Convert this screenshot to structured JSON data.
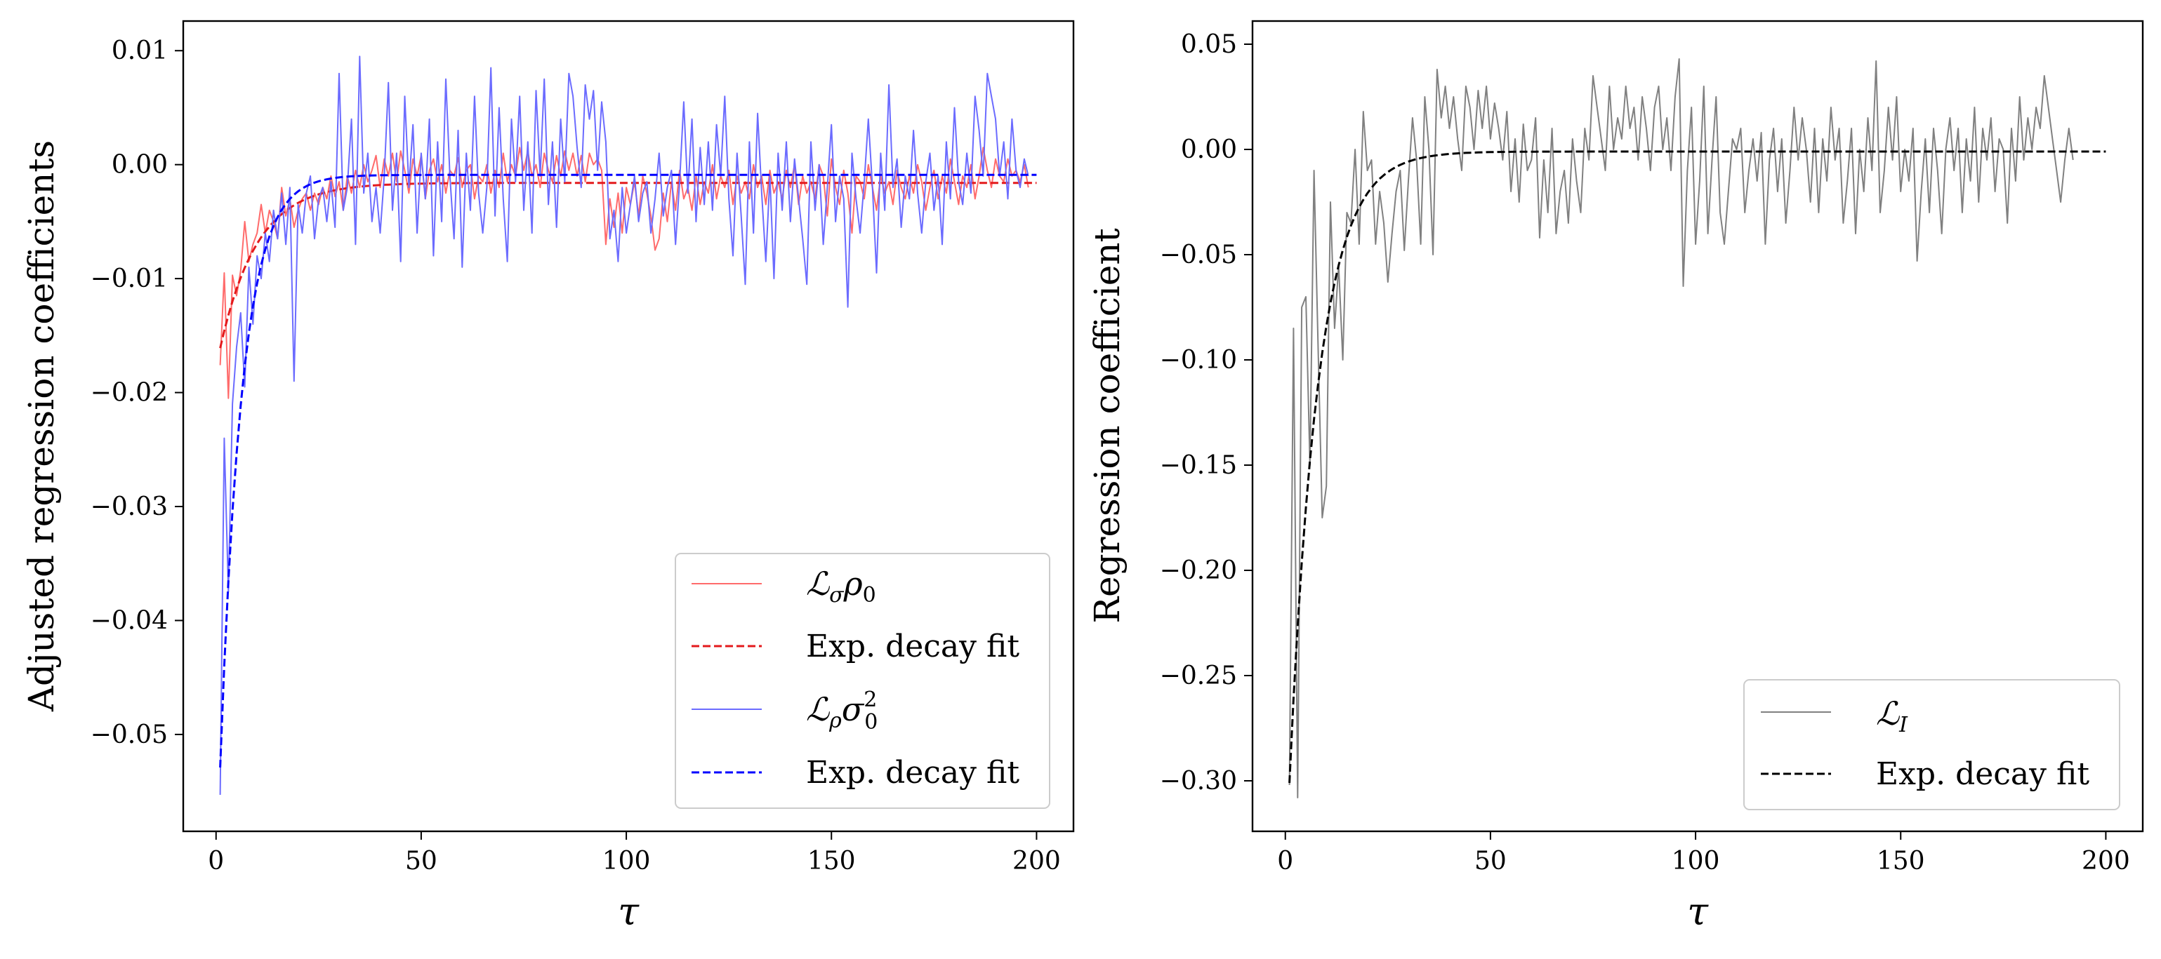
{
  "chart_data": [
    {
      "type": "line",
      "ylabel": "Adjusted regression coefficients",
      "xlabel": "τ",
      "xlim": [
        -8,
        209
      ],
      "ylim": [
        -0.0585,
        0.0126
      ],
      "xticks": [
        0,
        50,
        100,
        150,
        200
      ],
      "yticks": [
        0.01,
        0.0,
        -0.01,
        -0.02,
        -0.03,
        -0.04,
        -0.05
      ],
      "ytick_labels": [
        "0.01",
        "0.00",
        "−0.01",
        "−0.02",
        "−0.03",
        "−0.04",
        "−0.05"
      ],
      "grid": false,
      "legend_position": "lower-right",
      "series": [
        {
          "name": "ℒσρ0",
          "legend_main": "ℒ",
          "legend_sub": "σ",
          "legend_rest": "ρ",
          "legend_rest_sub": "0",
          "color": "#ff6b6b",
          "style": "solid",
          "values": [
            -0.0176,
            -0.0095,
            -0.0205,
            -0.0097,
            -0.0115,
            -0.0093,
            -0.005,
            -0.0085,
            -0.007,
            -0.006,
            -0.0035,
            -0.006,
            -0.004,
            -0.005,
            -0.0065,
            -0.002,
            -0.0045,
            -0.003,
            -0.0055,
            -0.004,
            -0.003,
            -0.0025,
            -0.004,
            -0.0025,
            -0.0035,
            -0.002,
            -0.003,
            -0.001,
            -0.0028,
            -0.0015,
            -0.004,
            -0.001,
            -0.0025,
            -0.0005,
            -0.002,
            0.0,
            -0.0015,
            -0.0005,
            0.0008,
            -0.002,
            0.0005,
            -0.001,
            0.001,
            -0.0015,
            0.0012,
            -0.0005,
            -0.0025,
            0.0005,
            -0.001,
            0.0008,
            -0.003,
            -0.0005,
            0.0005,
            -0.0015,
            0.0,
            -0.0025,
            -0.0005,
            -0.001,
            0.0006,
            -0.002,
            -0.0005,
            0.0,
            -0.003,
            -0.001,
            -0.0015,
            0.0,
            -0.0025,
            -0.0005,
            -0.002,
            0.001,
            -0.0015,
            0.0,
            -0.001,
            0.0015,
            -0.0005,
            0.0012,
            -0.001,
            0.0,
            -0.002,
            0.001,
            -0.0005,
            -0.0015,
            0.0008,
            -0.001,
            0.0012,
            -0.0005,
            0.001,
            -0.001,
            0.0008,
            -0.0015,
            0.001,
            0.0,
            0.0005,
            -0.0005,
            -0.007,
            -0.003,
            -0.0055,
            -0.0025,
            -0.006,
            -0.002,
            -0.0035,
            -0.0015,
            -0.0045,
            -0.001,
            -0.0025,
            -0.0045,
            -0.0075,
            -0.0065,
            -0.0025,
            -0.005,
            -0.0015,
            -0.004,
            -0.0005,
            -0.003,
            -0.002,
            -0.004,
            -0.001,
            -0.0035,
            -0.0015,
            -0.0025,
            0.0,
            -0.003,
            -0.001,
            -0.002,
            -0.0005,
            -0.0035,
            -0.001,
            -0.0025,
            -0.0015,
            -0.003,
            0.0,
            -0.002,
            -0.001,
            -0.0035,
            -0.0005,
            -0.0025,
            -0.0015,
            -0.003,
            -0.0005,
            -0.002,
            0.0,
            -0.0035,
            -0.001,
            -0.0025,
            -0.0015,
            -0.003,
            0.0,
            -0.001,
            -0.0045,
            0.0005,
            -0.002,
            -0.0035,
            -0.0005,
            -0.0025,
            -0.006,
            -0.001,
            -0.0015,
            -0.003,
            0.0,
            -0.002,
            -0.004,
            -0.001,
            -0.0025,
            -0.0015,
            -0.0035,
            -0.0005,
            -0.002,
            -0.003,
            -0.001,
            -0.0025,
            0.0,
            -0.0015,
            -0.004,
            -0.002,
            -0.0005,
            -0.003,
            -0.001,
            -0.0025,
            0.0005,
            -0.0015,
            -0.0035,
            -0.001,
            -0.002,
            0.0,
            -0.003,
            -0.001,
            0.0015,
            -0.0005,
            -0.002,
            0.0005,
            -0.001,
            -0.0015,
            0.0005,
            -0.001,
            -0.0005,
            -0.0015,
            0.0,
            -0.002
          ]
        },
        {
          "name": "Exp. decay fit",
          "color": "#e31a1c",
          "style": "dashed",
          "fit": {
            "a": -0.0145,
            "tau": 9.0,
            "c": -0.0016
          }
        },
        {
          "name": "ℒρσ0²",
          "legend_main": "ℒ",
          "legend_sub": "ρ",
          "legend_rest": "σ",
          "legend_rest_sub": "0",
          "legend_rest_sup": "2",
          "color": "#6b6bff",
          "style": "solid",
          "values": [
            -0.0553,
            -0.024,
            -0.0375,
            -0.021,
            -0.016,
            -0.013,
            -0.0195,
            -0.009,
            -0.014,
            -0.008,
            -0.01,
            -0.006,
            -0.0085,
            -0.004,
            -0.0065,
            -0.0025,
            -0.007,
            -0.002,
            -0.019,
            -0.0035,
            -0.006,
            -0.0025,
            -0.001,
            -0.0065,
            -0.003,
            -0.002,
            -0.005,
            -0.0015,
            -0.0055,
            0.008,
            -0.004,
            -0.002,
            0.004,
            -0.007,
            0.0095,
            -0.0025,
            0.001,
            -0.005,
            -0.002,
            -0.006,
            -0.001,
            0.0072,
            -0.004,
            0.001,
            -0.0085,
            0.006,
            -0.002,
            0.0035,
            -0.006,
            0.001,
            -0.003,
            0.004,
            -0.008,
            0.002,
            -0.005,
            0.0075,
            -0.001,
            -0.0065,
            0.003,
            -0.009,
            0.001,
            -0.004,
            0.006,
            -0.0025,
            -0.006,
            -0.002,
            0.0085,
            -0.0045,
            0.005,
            -0.003,
            -0.0085,
            0.004,
            -0.0015,
            0.006,
            -0.004,
            0.002,
            -0.006,
            0.0065,
            -0.001,
            0.0075,
            -0.0035,
            0.002,
            -0.0055,
            0.004,
            -0.0015,
            0.008,
            0.006,
            0.0015,
            -0.002,
            0.007,
            0.004,
            0.0065,
            -0.0005,
            0.0055,
            0.002,
            -0.0065,
            -0.004,
            -0.0085,
            -0.002,
            -0.006,
            -0.0035,
            -0.001,
            -0.005,
            -0.0025,
            -0.0015,
            -0.006,
            -0.003,
            0.001,
            -0.0045,
            -0.002,
            -0.0005,
            -0.007,
            -0.0015,
            0.0055,
            -0.0025,
            0.004,
            -0.005,
            0.0015,
            -0.0035,
            0.002,
            -0.004,
            0.0035,
            -0.001,
            0.006,
            -0.003,
            -0.008,
            0.001,
            -0.0045,
            -0.0105,
            0.002,
            -0.006,
            0.0045,
            -0.0025,
            -0.0085,
            -0.001,
            -0.01,
            0.001,
            -0.004,
            0.002,
            -0.005,
            0.0005,
            -0.003,
            -0.0065,
            -0.0105,
            0.002,
            -0.004,
            0.0,
            -0.007,
            -0.002,
            0.0035,
            -0.005,
            -0.001,
            -0.003,
            -0.0125,
            0.001,
            -0.003,
            -0.006,
            -0.0015,
            0.004,
            -0.002,
            -0.0095,
            0.001,
            -0.004,
            0.007,
            -0.002,
            0.0005,
            -0.0055,
            -0.001,
            -0.003,
            0.003,
            -0.0025,
            -0.006,
            -0.0015,
            0.001,
            -0.004,
            -0.001,
            -0.007,
            0.002,
            -0.003,
            0.005,
            -0.0015,
            -0.0035,
            0.001,
            -0.0025,
            0.006,
            0.003,
            -0.001,
            0.008,
            0.006,
            0.004,
            -0.001,
            0.002,
            -0.003,
            0.004,
            -0.0005,
            -0.002,
            0.0005,
            -0.001
          ]
        },
        {
          "name": "Exp. decay fit",
          "color": "#0000ff",
          "style": "dashed",
          "fit": {
            "a": -0.052,
            "tau": 5.3,
            "c": -0.0009
          }
        }
      ]
    },
    {
      "type": "line",
      "ylabel": "Regression coefficient",
      "xlabel": "τ",
      "xlim": [
        -8,
        209
      ],
      "ylim": [
        -0.324,
        0.061
      ],
      "xticks": [
        0,
        50,
        100,
        150,
        200
      ],
      "yticks": [
        0.05,
        0.0,
        -0.05,
        -0.1,
        -0.15,
        -0.2,
        -0.25,
        -0.3
      ],
      "ytick_labels": [
        "0.05",
        "0.00",
        "−0.05",
        "−0.10",
        "−0.15",
        "−0.20",
        "−0.25",
        "−0.30"
      ],
      "grid": false,
      "legend_position": "lower-right",
      "series": [
        {
          "name": "ℒI",
          "legend_main": "ℒ",
          "legend_sub": "I",
          "color": "#808080",
          "style": "solid",
          "values": [
            -0.302,
            -0.085,
            -0.308,
            -0.075,
            -0.07,
            -0.15,
            -0.01,
            -0.095,
            -0.175,
            -0.16,
            -0.025,
            -0.085,
            -0.055,
            -0.1,
            -0.03,
            -0.035,
            0.0,
            -0.045,
            0.018,
            -0.01,
            -0.005,
            -0.045,
            -0.02,
            -0.035,
            -0.063,
            -0.04,
            -0.02,
            -0.01,
            -0.048,
            -0.015,
            0.015,
            -0.005,
            -0.045,
            0.025,
            0.0,
            -0.05,
            0.038,
            0.015,
            0.03,
            0.01,
            0.025,
            0.005,
            -0.01,
            0.03,
            0.02,
            0.0,
            0.028,
            0.01,
            0.03,
            0.005,
            0.022,
            0.01,
            -0.005,
            0.018,
            -0.02,
            0.005,
            -0.025,
            0.012,
            -0.01,
            -0.005,
            0.015,
            -0.042,
            -0.005,
            -0.03,
            0.01,
            -0.04,
            -0.02,
            -0.01,
            -0.035,
            0.005,
            -0.015,
            -0.03,
            0.01,
            -0.005,
            0.035,
            0.02,
            0.005,
            -0.01,
            0.03,
            0.0,
            0.015,
            0.005,
            0.03,
            0.01,
            0.02,
            -0.005,
            0.025,
            0.01,
            -0.01,
            0.02,
            0.03,
            0.0,
            0.015,
            -0.01,
            0.025,
            0.043,
            -0.065,
            -0.01,
            0.02,
            -0.045,
            -0.015,
            0.03,
            -0.04,
            -0.005,
            0.025,
            -0.03,
            -0.045,
            -0.02,
            0.005,
            0.0,
            0.01,
            -0.03,
            -0.01,
            0.005,
            -0.015,
            0.008,
            -0.045,
            -0.005,
            0.01,
            -0.02,
            0.005,
            -0.035,
            -0.01,
            0.02,
            -0.005,
            0.015,
            0.0,
            -0.025,
            0.01,
            -0.03,
            0.005,
            -0.015,
            0.02,
            -0.005,
            0.01,
            -0.035,
            -0.015,
            0.01,
            -0.04,
            0.0,
            -0.02,
            0.015,
            -0.01,
            0.042,
            -0.03,
            -0.01,
            0.02,
            -0.005,
            0.025,
            -0.02,
            0.0,
            -0.015,
            0.01,
            -0.053,
            -0.02,
            0.005,
            -0.03,
            0.01,
            -0.01,
            -0.04,
            0.0,
            0.015,
            -0.01,
            0.01,
            -0.03,
            0.005,
            -0.015,
            0.02,
            -0.025,
            0.01,
            -0.005,
            0.015,
            -0.02,
            0.005,
            0.0,
            -0.035,
            0.01,
            -0.015,
            0.025,
            -0.005,
            0.015,
            0.0,
            0.02,
            0.01,
            0.035,
            0.02,
            0.005,
            -0.01,
            -0.025,
            -0.005,
            0.01,
            -0.005
          ]
        },
        {
          "name": "Exp. decay fit",
          "color": "#000000",
          "style": "dashed",
          "fit": {
            "a": -0.3,
            "tau": 7.0,
            "c": -0.001
          }
        }
      ]
    }
  ]
}
